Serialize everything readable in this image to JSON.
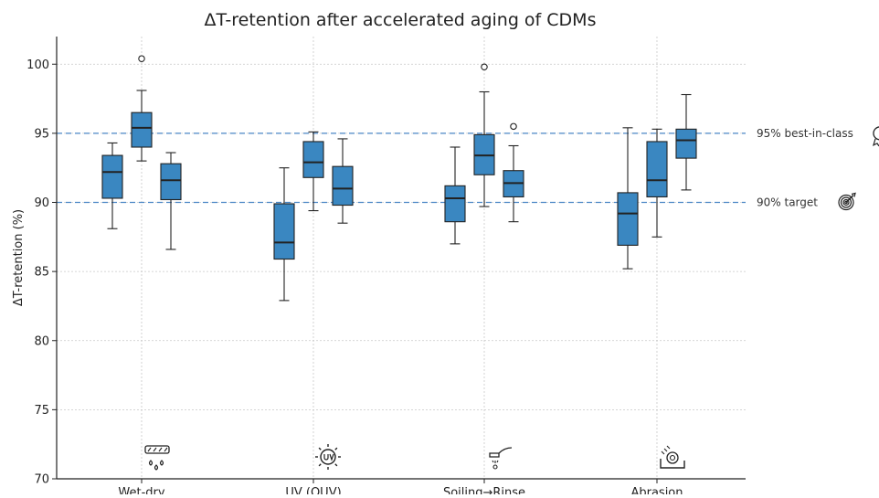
{
  "chart_data": {
    "type": "box",
    "title": "ΔT-retention after accelerated aging of CDMs",
    "xlabel": "",
    "ylabel": "ΔT-retention (%)",
    "ylim": [
      70,
      102
    ],
    "yticks": [
      70,
      75,
      80,
      85,
      90,
      95,
      100
    ],
    "grid": true,
    "box_color": "#3a87c1",
    "reference_lines": [
      {
        "value": 95,
        "label": "95% best-in-class",
        "color": "#4a86c5",
        "icon": "trophy-icon"
      },
      {
        "value": 90,
        "label": "90% target",
        "color": "#4a86c5",
        "icon": "target-icon"
      }
    ],
    "categories": [
      {
        "name": "Wet-dry",
        "icon": "wet-dry-icon",
        "boxes": [
          {
            "whislo": 88.1,
            "q1": 90.3,
            "med": 92.2,
            "q3": 93.4,
            "whishi": 94.3,
            "fliers": []
          },
          {
            "whislo": 93.0,
            "q1": 94.0,
            "med": 95.4,
            "q3": 96.5,
            "whishi": 98.1,
            "fliers": [
              100.4
            ]
          },
          {
            "whislo": 86.6,
            "q1": 90.2,
            "med": 91.6,
            "q3": 92.8,
            "whishi": 93.6,
            "fliers": []
          }
        ]
      },
      {
        "name": "UV (QUV)",
        "icon": "uv-icon",
        "boxes": [
          {
            "whislo": 82.9,
            "q1": 85.9,
            "med": 87.1,
            "q3": 89.9,
            "whishi": 92.5,
            "fliers": []
          },
          {
            "whislo": 89.4,
            "q1": 91.8,
            "med": 92.9,
            "q3": 94.4,
            "whishi": 95.1,
            "fliers": []
          },
          {
            "whislo": 88.5,
            "q1": 89.8,
            "med": 91.0,
            "q3": 92.6,
            "whishi": 94.6,
            "fliers": []
          }
        ]
      },
      {
        "name": "Soiling→Rinse",
        "icon": "rinse-icon",
        "boxes": [
          {
            "whislo": 87.0,
            "q1": 88.6,
            "med": 90.3,
            "q3": 91.2,
            "whishi": 94.0,
            "fliers": []
          },
          {
            "whislo": 89.7,
            "q1": 92.0,
            "med": 93.4,
            "q3": 94.9,
            "whishi": 98.0,
            "fliers": [
              99.8
            ]
          },
          {
            "whislo": 88.6,
            "q1": 90.4,
            "med": 91.4,
            "q3": 92.3,
            "whishi": 94.1,
            "fliers": [
              95.5
            ]
          }
        ]
      },
      {
        "name": "Abrasion",
        "icon": "abrasion-icon",
        "boxes": [
          {
            "whislo": 85.2,
            "q1": 86.9,
            "med": 89.2,
            "q3": 90.7,
            "whishi": 95.4,
            "fliers": []
          },
          {
            "whislo": 87.5,
            "q1": 90.4,
            "med": 91.6,
            "q3": 94.4,
            "whishi": 95.3,
            "fliers": []
          },
          {
            "whislo": 90.9,
            "q1": 93.2,
            "med": 94.5,
            "q3": 95.3,
            "whishi": 97.8,
            "fliers": []
          }
        ]
      }
    ]
  }
}
